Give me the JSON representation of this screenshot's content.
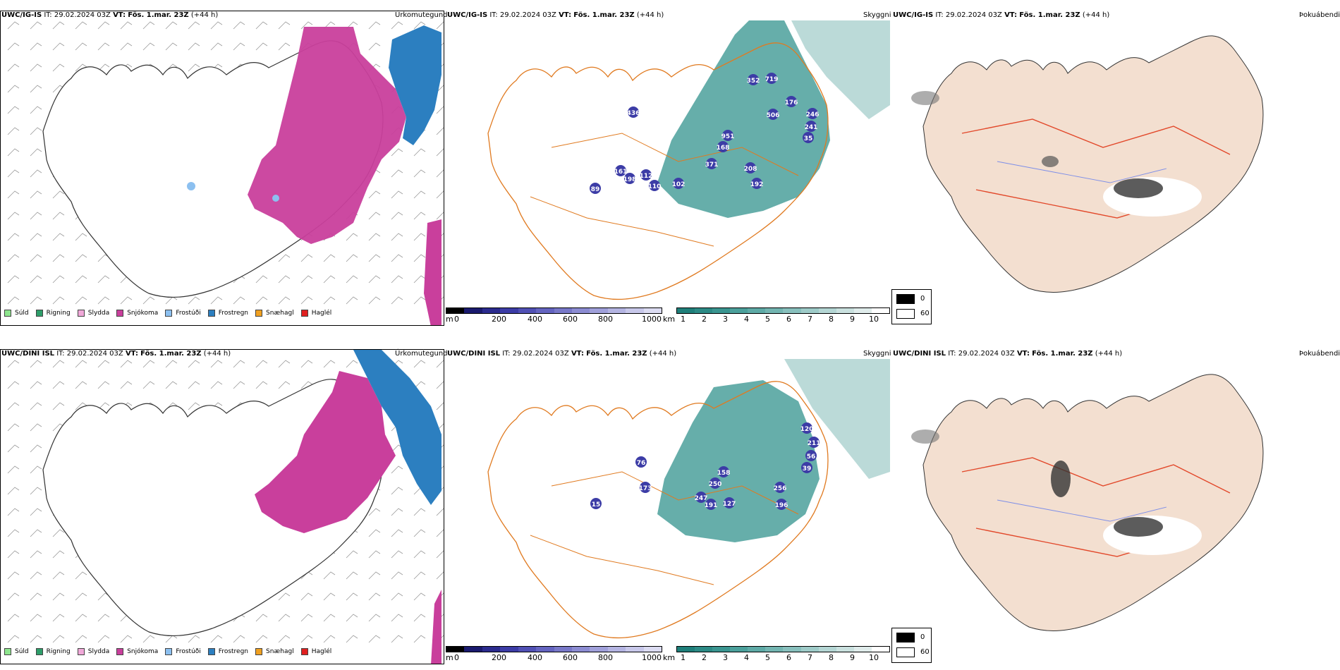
{
  "rows": [
    {
      "model": "UWC/IG-IS",
      "it_label": "IT:",
      "it_value": "29.02.2024 03Z",
      "vt_label": "VT:",
      "vt_value": "Fös. 1.mar. 23Z",
      "lead": "(+44 h)",
      "cloud_labels": [
        "352",
        "719",
        "176",
        "506",
        "246",
        "241",
        "35",
        "436",
        "951",
        "168",
        "371",
        "208",
        "161",
        "112",
        "198",
        "110",
        "102",
        "192",
        "89"
      ]
    },
    {
      "model": "UWC/DINI ISL",
      "it_label": "IT:",
      "it_value": "29.02.2024 03Z",
      "vt_label": "VT:",
      "vt_value": "Fös. 1.mar. 23Z",
      "lead": "(+44 h)",
      "cloud_labels": [
        "120",
        "211",
        "56",
        "39",
        "76",
        "158",
        "250",
        "256",
        "173",
        "247",
        "191",
        "127",
        "196",
        "15"
      ]
    }
  ],
  "panel_titles": {
    "precip_type": "Úrkomutegund",
    "cloud_base": "Skyggni",
    "cloud_cover": "Þokuábendi"
  },
  "precip_legend": [
    {
      "label": "Súld",
      "color": "#8ee68e"
    },
    {
      "label": "Rigning",
      "color": "#2e9e6a"
    },
    {
      "label": "Slydda",
      "color": "#f0a8d8"
    },
    {
      "label": "Snjókoma",
      "color": "#c93f9c"
    },
    {
      "label": "Frostúði",
      "color": "#8cc0f0"
    },
    {
      "label": "Frostregn",
      "color": "#2c7fc0"
    },
    {
      "label": "Snæhagl",
      "color": "#f0a020"
    },
    {
      "label": "Haglél",
      "color": "#e02020"
    }
  ],
  "cloud_scale_m": {
    "unit": "m",
    "ticks": [
      "0",
      "200",
      "400",
      "600",
      "800",
      "1000"
    ],
    "colors": [
      "#000000",
      "#1a1a6e",
      "#2b2b8e",
      "#3c3ca6",
      "#5050b4",
      "#6464c0",
      "#7878c8",
      "#8c8cd2",
      "#a0a0da",
      "#b4b4e2",
      "#c8c8ea",
      "#dcdcf2"
    ]
  },
  "vis_scale_km": {
    "unit": "km",
    "ticks": [
      "1",
      "2",
      "3",
      "4",
      "5",
      "6",
      "7",
      "8",
      "9",
      "10"
    ],
    "colors": [
      "#1f7f7a",
      "#2c8a85",
      "#3a9590",
      "#4ba09b",
      "#5eaaa6",
      "#73b5b1",
      "#88c0bd",
      "#9ecbc8",
      "#b4d6d4",
      "#cae1df",
      "#e0eceb",
      "#ffffff"
    ]
  },
  "grey_legend": {
    "items": [
      {
        "label": "0",
        "color": "#000000"
      },
      {
        "label": "60",
        "color": "#ffffff"
      }
    ]
  }
}
